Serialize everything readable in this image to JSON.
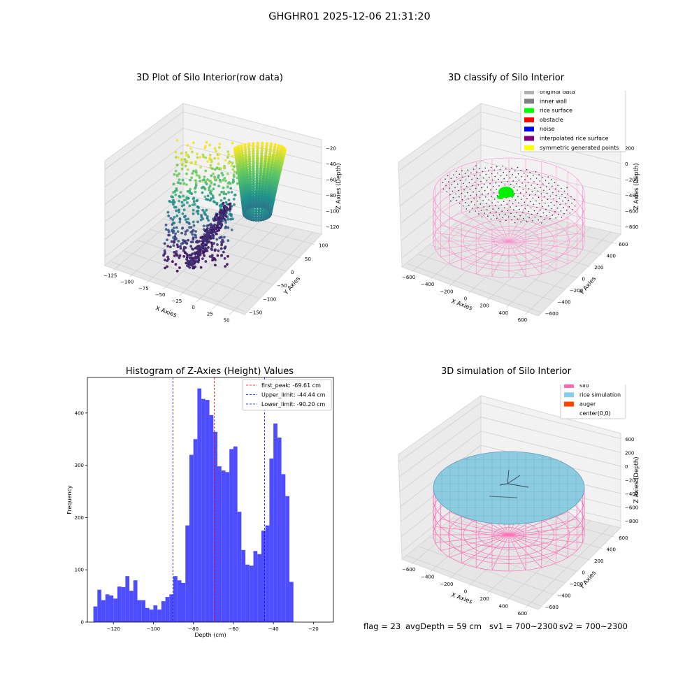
{
  "suptitle": "GHGHR01 2025-12-06 21:31:20",
  "status": {
    "flag": "flag = 23",
    "avg_depth": "avgDepth = 59 cm",
    "sv1": "sv1 = 700~2300",
    "sv2": "sv2 = 700~2300"
  },
  "panels": {
    "raw": {
      "title": "3D Plot of Silo Interior(row data)",
      "xlabel": "X Axies",
      "ylabel": "Y Axies",
      "zlabel": "Z Axies (Depth)",
      "xticks": [
        "−125",
        "−100",
        "−75",
        "−50",
        "−25",
        "0",
        "25",
        "50"
      ],
      "yticks": [
        "−150",
        "−100",
        "−50",
        "0",
        "50",
        "100"
      ],
      "zticks": [
        "−20",
        "−40",
        "−60",
        "−80",
        "−100",
        "−120"
      ]
    },
    "classify": {
      "title": "3D classify of Silo Interior",
      "xlabel": "X Axies",
      "ylabel": "Y Axies",
      "zlabel": "Z Axies (Depth)",
      "xticks": [
        "−600",
        "−400",
        "−200",
        "0",
        "200",
        "400",
        "600"
      ],
      "yticks": [
        "−600",
        "−400",
        "−200",
        "0",
        "200",
        "400",
        "600"
      ],
      "zticks": [
        "200",
        "0",
        "−200",
        "−400",
        "−600",
        "−800"
      ],
      "legend": [
        {
          "label": "original data",
          "color": "#b0b0b0"
        },
        {
          "label": "inner wall",
          "color": "#808080"
        },
        {
          "label": "rice surface",
          "color": "#00ff00"
        },
        {
          "label": "obstacle",
          "color": "#ff0000"
        },
        {
          "label": "noise",
          "color": "#0000ff"
        },
        {
          "label": "interpolated rice surface",
          "color": "#800080"
        },
        {
          "label": "symmetric generated points",
          "color": "#ffff00"
        }
      ]
    },
    "simulation": {
      "title": "3D simulation of Silo Interior",
      "xlabel": "X Axies",
      "ylabel": "Y Axies",
      "zlabel": "Z Axies (Depth)",
      "xticks": [
        "−600",
        "−400",
        "−200",
        "0",
        "200",
        "400",
        "600"
      ],
      "yticks": [
        "−600",
        "−400",
        "−200",
        "0",
        "200",
        "400",
        "600"
      ],
      "zticks": [
        "400",
        "200",
        "0",
        "−200",
        "−400",
        "−600",
        "−800"
      ],
      "legend": [
        {
          "label": "silo",
          "color": "#ff69b4"
        },
        {
          "label": "rice simulation",
          "color": "#87ceeb"
        },
        {
          "label": "auger",
          "color": "#ff4500"
        },
        {
          "label": "center(0,0)",
          "color": ""
        }
      ]
    }
  },
  "chart_data": [
    {
      "type": "bar",
      "title": "Histogram of Z-Axies (Height) Values",
      "xlabel": "Depth (cm)",
      "ylabel": "Frequency",
      "xlim": [
        -133,
        -10
      ],
      "ylim": [
        0,
        468
      ],
      "bar_color": "#4d4dff",
      "bin_start": -130,
      "bin_width": 2,
      "values": [
        30,
        62,
        42,
        53,
        51,
        45,
        68,
        67,
        88,
        60,
        80,
        42,
        42,
        27,
        24,
        32,
        24,
        40,
        48,
        53,
        88,
        80,
        75,
        185,
        320,
        350,
        447,
        427,
        425,
        396,
        364,
        298,
        290,
        287,
        331,
        336,
        211,
        138,
        110,
        108,
        136,
        130,
        175,
        185,
        313,
        380,
        353,
        283,
        241,
        77
      ],
      "xticks": [
        -120,
        -100,
        -80,
        -60,
        -40,
        -20
      ],
      "yticks": [
        0,
        100,
        200,
        300,
        400
      ],
      "lines": [
        {
          "label": "first_peak: -69.61 cm",
          "x": -69.61,
          "color": "#ff0000"
        },
        {
          "label": "Upper_limit: -44.44 cm",
          "x": -44.44,
          "color": "#0000ff"
        },
        {
          "label": "Lower_limit: -90.20 cm",
          "x": -90.2,
          "color": "#0000ff"
        }
      ]
    }
  ]
}
